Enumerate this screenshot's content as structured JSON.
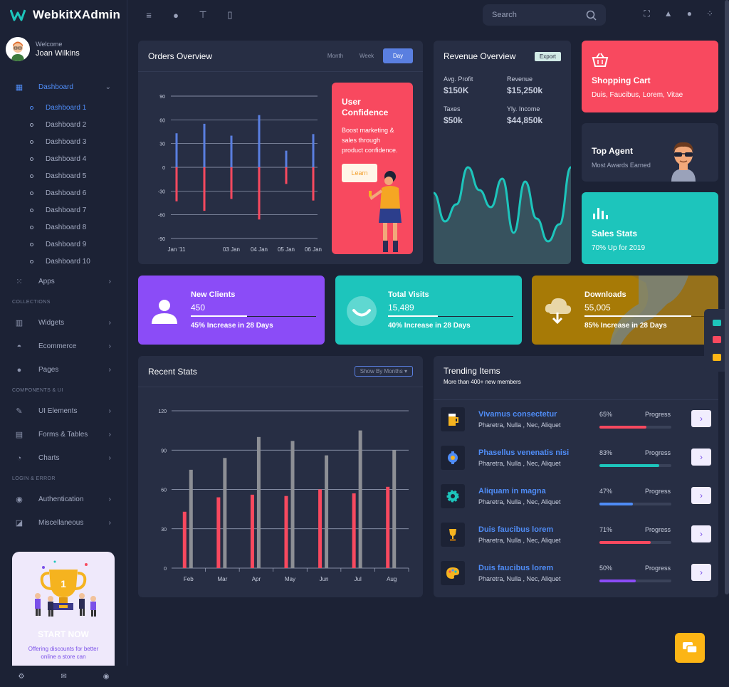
{
  "brand": {
    "name": "WebkitXAdmin"
  },
  "user": {
    "welcome": "Welcome",
    "name": "Joan Wilkins"
  },
  "nav": {
    "dashboard": "Dashboard",
    "dashboards": [
      "Dashboard 1",
      "Dashboard 2",
      "Dashboard 3",
      "Dashboard 4",
      "Dashboard 5",
      "Dashboard 6",
      "Dashboard 7",
      "Dashboard 8",
      "Dashboard 9",
      "Dashboard 10"
    ],
    "apps": "Apps",
    "section_collections": "COLLECTIONS",
    "widgets": "Widgets",
    "ecommerce": "Ecommerce",
    "pages": "Pages",
    "section_components": "COMPONENTS & UI",
    "ui_elements": "UI Elements",
    "forms_tables": "Forms & Tables",
    "charts": "Charts",
    "section_login": "LOGIN & ERROR",
    "authentication": "Authentication",
    "miscellaneous": "Miscellaneous"
  },
  "promo": {
    "title": "START NOW",
    "desc": "Offering discounts for better online a store can"
  },
  "search": {
    "placeholder": "Search"
  },
  "orders": {
    "title": "Orders Overview",
    "tabs": [
      "Month",
      "Week",
      "Day"
    ],
    "active_tab": "Day",
    "confidence": {
      "title": "User Confidence",
      "desc": "Boost marketing & sales through product confidence.",
      "button": "Learn"
    }
  },
  "revenue": {
    "title": "Revenue Overview",
    "badge": "Export",
    "stats": [
      {
        "label": "Avg. Profit",
        "value": "$150K"
      },
      {
        "label": "Revenue",
        "value": "$15,250k"
      },
      {
        "label": "Taxes",
        "value": "$50k"
      },
      {
        "label": "Yly. Income",
        "value": "$44,850k"
      }
    ]
  },
  "cart": {
    "title": "Shopping Cart",
    "sub": "Duis, Faucibus, Lorem, Vitae"
  },
  "agent": {
    "title": "Top Agent",
    "sub": "Most Awards Earned"
  },
  "sales": {
    "title": "Sales Stats",
    "sub": "70% Up for 2019"
  },
  "stats": [
    {
      "title": "New Clients",
      "value": "450",
      "sub": "45% Increase in 28 Days",
      "progress": 0.45,
      "color": "#8b4cf7"
    },
    {
      "title": "Total Visits",
      "value": "15,489",
      "sub": "40% Increase in 28 Days",
      "progress": 0.4,
      "color": "#1dc5bc"
    },
    {
      "title": "Downloads",
      "value": "55,005",
      "sub": "85% Increase in 28 Days",
      "progress": 0.85,
      "color": "#a77a06"
    }
  ],
  "recent": {
    "title": "Recent Stats",
    "dropdown": "Show By Months"
  },
  "trending": {
    "title": "Trending Items",
    "sub": "More than 400+ new members",
    "progress_label": "Progress",
    "items": [
      {
        "name": "Vivamus consectetur",
        "desc": "Pharetra, Nulla , Nec, Aliquet",
        "pct": "65%",
        "value": 0.65,
        "color": "#f8495f",
        "icon": "beer-icon"
      },
      {
        "name": "Phasellus venenatis nisi",
        "desc": "Pharetra, Nulla , Nec, Aliquet",
        "pct": "83%",
        "value": 0.83,
        "color": "#1dc5bc",
        "icon": "brain-gear-icon"
      },
      {
        "name": "Aliquam in magna",
        "desc": "Pharetra, Nulla , Nec, Aliquet",
        "pct": "47%",
        "value": 0.47,
        "color": "#4f8cf6",
        "icon": "gear-icon"
      },
      {
        "name": "Duis faucibus lorem",
        "desc": "Pharetra, Nulla , Nec, Aliquet",
        "pct": "71%",
        "value": 0.71,
        "color": "#f8495f",
        "icon": "trophy-icon"
      },
      {
        "name": "Duis faucibus lorem",
        "desc": "Pharetra, Nulla , Nec, Aliquet",
        "pct": "50%",
        "value": 0.5,
        "color": "#8b4cf7",
        "icon": "palette-icon"
      }
    ]
  },
  "chart_data": [
    {
      "type": "bar",
      "title": "Orders Overview",
      "x_ticks": [
        "Jan '11",
        "",
        "03 Jan",
        "04 Jan",
        "05 Jan",
        "06 Jan"
      ],
      "ylim": [
        -90,
        90
      ],
      "yticks": [
        90,
        60,
        30,
        0,
        -30,
        -60,
        -90
      ],
      "series": [
        {
          "values": [
            43,
            55,
            40,
            66,
            21,
            42
          ],
          "color": "#5a7fe0"
        },
        {
          "values": [
            -43,
            -55,
            -40,
            -66,
            -21,
            -42
          ],
          "color": "#f8495f"
        }
      ]
    },
    {
      "type": "area",
      "title": "Revenue Overview",
      "values": [
        40,
        20,
        32,
        58,
        42,
        30,
        50,
        12,
        48,
        22,
        6,
        18,
        58
      ],
      "color": "#1dc5bc"
    },
    {
      "type": "bar",
      "title": "Recent Stats",
      "categories": [
        "Feb",
        "Mar",
        "Apr",
        "May",
        "Jun",
        "Jul",
        "Aug"
      ],
      "ylim": [
        0,
        120
      ],
      "yticks": [
        120,
        90,
        60,
        30,
        0
      ],
      "series": [
        {
          "values": [
            43,
            54,
            56,
            55,
            60,
            57,
            62
          ],
          "color": "#f8495f"
        },
        {
          "values": [
            75,
            84,
            100,
            97,
            86,
            105,
            90
          ],
          "color": "#8d8f95"
        }
      ]
    }
  ]
}
